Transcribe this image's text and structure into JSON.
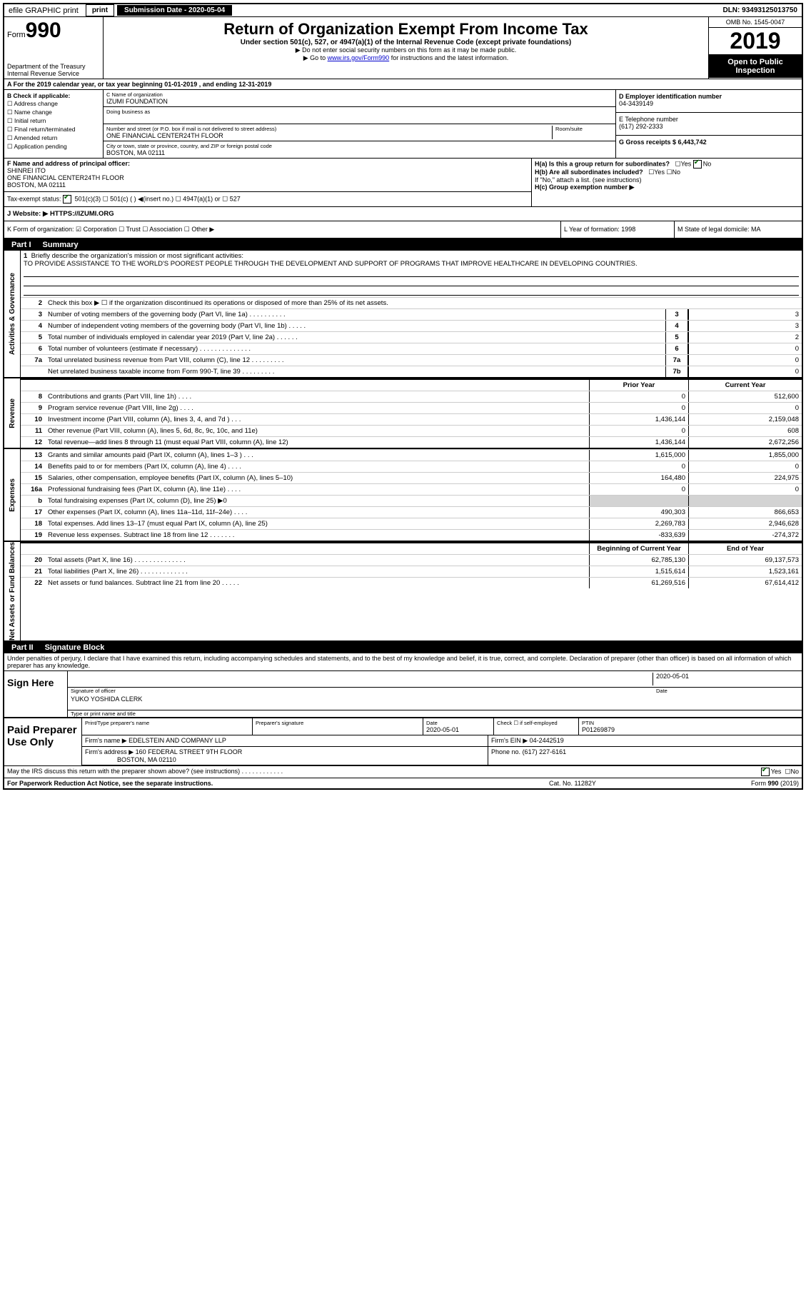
{
  "topbar": {
    "efile": "efile GRAPHIC print",
    "submission_label": "Submission Date - 2020-05-04",
    "dln": "DLN: 93493125013750"
  },
  "header": {
    "form_prefix": "Form",
    "form_number": "990",
    "dept": "Department of the Treasury\nInternal Revenue Service",
    "title": "Return of Organization Exempt From Income Tax",
    "sub1": "Under section 501(c), 527, or 4947(a)(1) of the Internal Revenue Code (except private foundations)",
    "sub2": "▶ Do not enter social security numbers on this form as it may be made public.",
    "sub3_pre": "▶ Go to ",
    "sub3_link": "www.irs.gov/Form990",
    "sub3_post": " for instructions and the latest information.",
    "omb": "OMB No. 1545-0047",
    "year": "2019",
    "open": "Open to Public Inspection"
  },
  "row_a": "A For the 2019 calendar year, or tax year beginning 01-01-2019   , and ending 12-31-2019",
  "col_b": {
    "label": "B Check if applicable:",
    "items": [
      "☐ Address change",
      "☐ Name change",
      "☐ Initial return",
      "☐ Final return/terminated",
      "☐ Amended return",
      "☐ Application pending"
    ]
  },
  "col_c": {
    "name_label": "C Name of organization",
    "name": "IZUMI FOUNDATION",
    "dba_label": "Doing business as",
    "addr_label": "Number and street (or P.O. box if mail is not delivered to street address)",
    "room_label": "Room/suite",
    "addr": "ONE FINANCIAL CENTER24TH FLOOR",
    "city_label": "City or town, state or province, country, and ZIP or foreign postal code",
    "city": "BOSTON, MA  02111"
  },
  "col_d": {
    "ein_label": "D Employer identification number",
    "ein": "04-3439149",
    "tel_label": "E Telephone number",
    "tel": "(617) 292-2333",
    "gross_label": "G Gross receipts $ 6,443,742"
  },
  "row_f": {
    "label": "F  Name and address of principal officer:",
    "name": "SHINREI ITO",
    "addr1": "ONE FINANCIAL CENTER24TH FLOOR",
    "addr2": "BOSTON, MA  02111"
  },
  "row_h": {
    "ha": "H(a)  Is this a group return for subordinates?",
    "hb": "H(b)  Are all subordinates included?",
    "hb_note": "If \"No,\" attach a list. (see instructions)",
    "hc": "H(c)  Group exemption number ▶"
  },
  "tax_exempt": "Tax-exempt status:",
  "tax_opts": "501(c)(3)    ☐  501(c) (  ) ◀(insert no.)    ☐  4947(a)(1) or   ☐  527",
  "website_label": "J   Website: ▶",
  "website": "HTTPS://IZUMI.ORG",
  "row_k": "K Form of organization:  ☑ Corporation  ☐ Trust  ☐ Association  ☐ Other ▶",
  "row_l": "L Year of formation: 1998",
  "row_m": "M State of legal domicile: MA",
  "part1": {
    "tab": "Part I",
    "title": "Summary"
  },
  "mission": {
    "num": "1",
    "label": "Briefly describe the organization's mission or most significant activities:",
    "text": "TO PROVIDE ASSISTANCE TO THE WORLD'S POOREST PEOPLE THROUGH THE DEVELOPMENT AND SUPPORT OF PROGRAMS THAT IMPROVE HEALTHCARE IN DEVELOPING COUNTRIES."
  },
  "gov_lines": [
    {
      "n": "2",
      "d": "Check this box ▶ ☐  if the organization discontinued its operations or disposed of more than 25% of its net assets.",
      "box": "",
      "v": ""
    },
    {
      "n": "3",
      "d": "Number of voting members of the governing body (Part VI, line 1a)  .   .   .   .   .   .   .   .   .   .",
      "box": "3",
      "v": "3"
    },
    {
      "n": "4",
      "d": "Number of independent voting members of the governing body (Part VI, line 1b)  .   .   .   .   .",
      "box": "4",
      "v": "3"
    },
    {
      "n": "5",
      "d": "Total number of individuals employed in calendar year 2019 (Part V, line 2a)  .   .   .   .   .   .",
      "box": "5",
      "v": "2"
    },
    {
      "n": "6",
      "d": "Total number of volunteers (estimate if necessary)   .   .   .   .   .   .   .   .   .   .   .   .   .   .",
      "box": "6",
      "v": "0"
    },
    {
      "n": "7a",
      "d": "Total unrelated business revenue from Part VIII, column (C), line 12  .   .   .   .   .   .   .   .   .",
      "box": "7a",
      "v": "0"
    },
    {
      "n": "",
      "d": "Net unrelated business taxable income from Form 990-T, line 39   .   .   .   .   .   .   .   .   .",
      "box": "7b",
      "v": "0"
    }
  ],
  "rev_header": {
    "c1": "Prior Year",
    "c2": "Current Year"
  },
  "rev_lines": [
    {
      "n": "8",
      "d": "Contributions and grants (Part VIII, line 1h)   .   .   .   .",
      "v1": "0",
      "v2": "512,600"
    },
    {
      "n": "9",
      "d": "Program service revenue (Part VIII, line 2g)   .   .   .   .",
      "v1": "0",
      "v2": "0"
    },
    {
      "n": "10",
      "d": "Investment income (Part VIII, column (A), lines 3, 4, and 7d )   .   .   .",
      "v1": "1,436,144",
      "v2": "2,159,048"
    },
    {
      "n": "11",
      "d": "Other revenue (Part VIII, column (A), lines 5, 6d, 8c, 9c, 10c, and 11e)",
      "v1": "0",
      "v2": "608"
    },
    {
      "n": "12",
      "d": "Total revenue—add lines 8 through 11 (must equal Part VIII, column (A), line 12)",
      "v1": "1,436,144",
      "v2": "2,672,256"
    }
  ],
  "exp_lines": [
    {
      "n": "13",
      "d": "Grants and similar amounts paid (Part IX, column (A), lines 1–3 )  .   .   .",
      "v1": "1,615,000",
      "v2": "1,855,000"
    },
    {
      "n": "14",
      "d": "Benefits paid to or for members (Part IX, column (A), line 4)  .   .   .   .",
      "v1": "0",
      "v2": "0"
    },
    {
      "n": "15",
      "d": "Salaries, other compensation, employee benefits (Part IX, column (A), lines 5–10)",
      "v1": "164,480",
      "v2": "224,975"
    },
    {
      "n": "16a",
      "d": "Professional fundraising fees (Part IX, column (A), line 11e)  .   .   .   .",
      "v1": "0",
      "v2": "0"
    },
    {
      "n": "b",
      "d": "Total fundraising expenses (Part IX, column (D), line 25) ▶0",
      "v1": "",
      "v2": "",
      "grey": true
    },
    {
      "n": "17",
      "d": "Other expenses (Part IX, column (A), lines 11a–11d, 11f–24e)  .   .   .   .",
      "v1": "490,303",
      "v2": "866,653"
    },
    {
      "n": "18",
      "d": "Total expenses. Add lines 13–17 (must equal Part IX, column (A), line 25)",
      "v1": "2,269,783",
      "v2": "2,946,628"
    },
    {
      "n": "19",
      "d": "Revenue less expenses. Subtract line 18 from line 12 .   .   .   .   .   .   .",
      "v1": "-833,639",
      "v2": "-274,372"
    }
  ],
  "net_header": {
    "c1": "Beginning of Current Year",
    "c2": "End of Year"
  },
  "net_lines": [
    {
      "n": "20",
      "d": "Total assets (Part X, line 16)  .   .   .   .   .   .   .   .   .   .   .   .   .   .",
      "v1": "62,785,130",
      "v2": "69,137,573"
    },
    {
      "n": "21",
      "d": "Total liabilities (Part X, line 26)  .   .   .   .   .   .   .   .   .   .   .   .   .",
      "v1": "1,515,614",
      "v2": "1,523,161"
    },
    {
      "n": "22",
      "d": "Net assets or fund balances. Subtract line 21 from line 20  .   .   .   .   .",
      "v1": "61,269,516",
      "v2": "67,614,412"
    }
  ],
  "part2": {
    "tab": "Part II",
    "title": "Signature Block"
  },
  "sig": {
    "declaration": "Under penalties of perjury, I declare that I have examined this return, including accompanying schedules and statements, and to the best of my knowledge and belief, it is true, correct, and complete. Declaration of preparer (other than officer) is based on all information of which preparer has any knowledge.",
    "sign_here": "Sign Here",
    "sig_officer": "Signature of officer",
    "date": "2020-05-01",
    "date_label": "Date",
    "name": "YUKO YOSHIDA  CLERK",
    "name_label": "Type or print name and title"
  },
  "paid": {
    "label": "Paid Preparer Use Only",
    "h1": "Print/Type preparer's name",
    "h2": "Preparer's signature",
    "h3": "Date",
    "h3v": "2020-05-01",
    "h4": "Check ☐ if self-employed",
    "h5": "PTIN",
    "h5v": "P01269879",
    "firm_label": "Firm's name  ▶",
    "firm": "EDELSTEIN AND COMPANY LLP",
    "firm_ein_label": "Firm's EIN ▶",
    "firm_ein": "04-2442519",
    "firm_addr_label": "Firm's address ▶",
    "firm_addr1": "160 FEDERAL STREET 9TH FLOOR",
    "firm_addr2": "BOSTON, MA  02110",
    "phone_label": "Phone no.",
    "phone": "(617) 227-6161"
  },
  "discuss": "May the IRS discuss this return with the preparer shown above? (see instructions)   .   .   .   .   .   .   .   .   .   .   .   .",
  "footer": {
    "left": "For Paperwork Reduction Act Notice, see the separate instructions.",
    "mid": "Cat. No. 11282Y",
    "right": "Form 990 (2019)"
  },
  "vtabs": {
    "gov": "Activities & Governance",
    "rev": "Revenue",
    "exp": "Expenses",
    "net": "Net Assets or Fund Balances"
  }
}
